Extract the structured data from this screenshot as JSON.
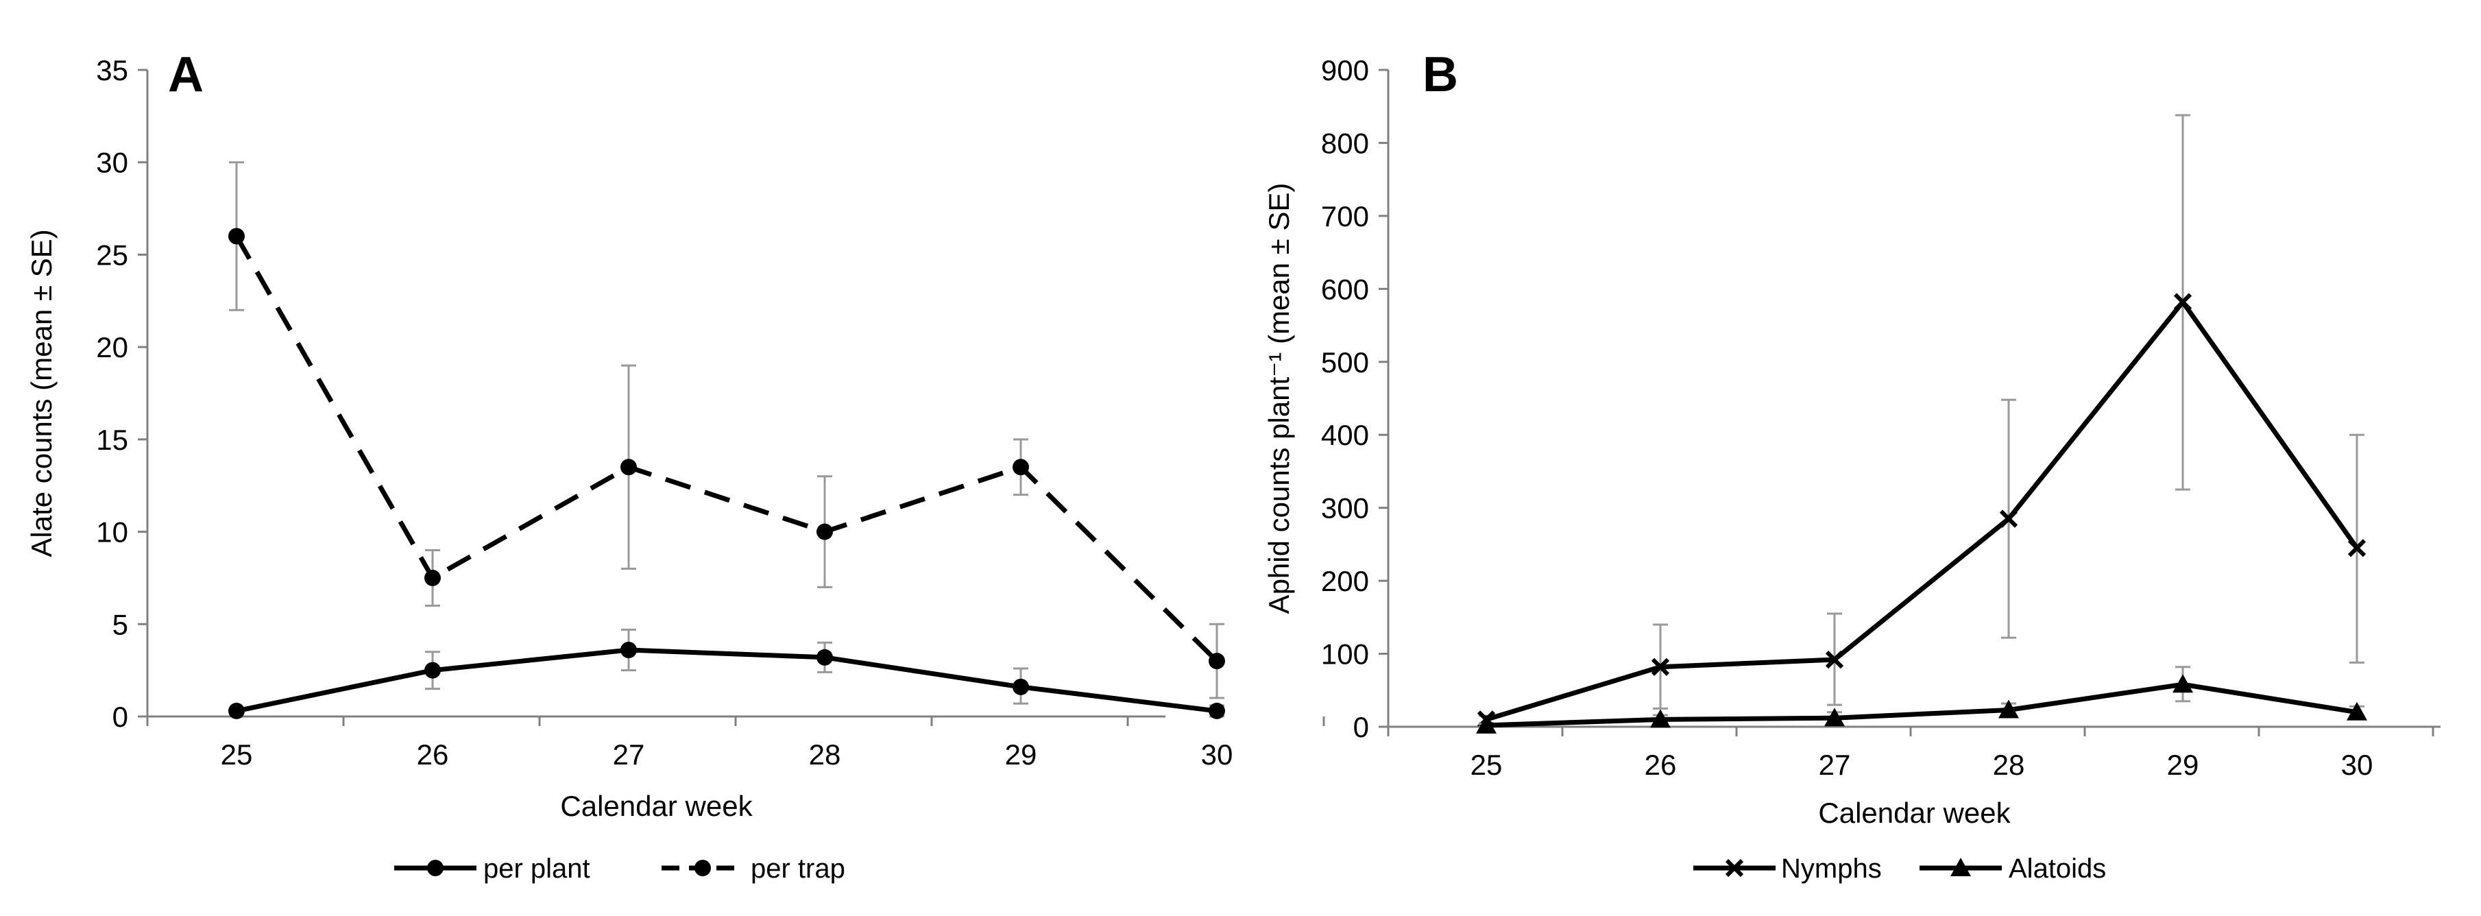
{
  "chart_data": [
    {
      "panel": "A",
      "type": "line",
      "xlabel": "Calendar week",
      "ylabel": "Alate counts (mean ± SE)",
      "x": [
        25,
        26,
        27,
        28,
        29,
        30
      ],
      "x_tick_labels": [
        "25",
        "26",
        "27",
        "28",
        "29",
        "30"
      ],
      "ylim": [
        0,
        35
      ],
      "y_ticks": [
        0,
        5,
        10,
        15,
        20,
        25,
        30,
        35
      ],
      "y_tick_labels": [
        "0",
        "5",
        "10",
        "15",
        "20",
        "25",
        "30",
        "35"
      ],
      "grid": false,
      "legend_position": "bottom",
      "series": [
        {
          "name": "per plant",
          "line_style": "solid",
          "marker": "circle",
          "color": "#000000",
          "values": [
            0.3,
            2.5,
            3.6,
            3.2,
            1.6,
            0.3
          ],
          "error_low": [
            0.3,
            1.5,
            2.5,
            2.4,
            0.7,
            0.0
          ],
          "error_high": [
            0.3,
            3.5,
            4.7,
            4.0,
            2.6,
            0.6
          ]
        },
        {
          "name": "per trap",
          "line_style": "dashed",
          "marker": "circle",
          "color": "#000000",
          "values": [
            26.0,
            7.5,
            13.5,
            10.0,
            13.5,
            3.0
          ],
          "error_low": [
            22.0,
            6.0,
            8.0,
            7.0,
            12.0,
            1.0
          ],
          "error_high": [
            30.0,
            9.0,
            19.0,
            13.0,
            15.0,
            5.0
          ]
        }
      ]
    },
    {
      "panel": "B",
      "type": "line",
      "xlabel": "Calendar week",
      "ylabel": "Aphid counts plant⁻¹ (mean ± SE)",
      "x": [
        25,
        26,
        27,
        28,
        29,
        30
      ],
      "x_tick_labels": [
        "25",
        "26",
        "27",
        "28",
        "29",
        "30"
      ],
      "ylim": [
        0,
        900
      ],
      "y_ticks": [
        0,
        100,
        200,
        300,
        400,
        500,
        600,
        700,
        800,
        900
      ],
      "y_tick_labels": [
        "0",
        "100",
        "200",
        "300",
        "400",
        "500",
        "600",
        "700",
        "800",
        "900"
      ],
      "grid": false,
      "legend_position": "bottom",
      "series": [
        {
          "name": "Nymphs",
          "line_style": "solid",
          "marker": "x",
          "color": "#000000",
          "values": [
            10,
            82,
            92,
            285,
            582,
            245
          ],
          "error_low": [
            5,
            25,
            30,
            122,
            325,
            88
          ],
          "error_high": [
            15,
            140,
            155,
            448,
            838,
            400
          ]
        },
        {
          "name": "Alatoids",
          "line_style": "solid",
          "marker": "triangle",
          "color": "#000000",
          "values": [
            2,
            10,
            12,
            23,
            58,
            20
          ],
          "error_low": [
            0,
            5,
            6,
            15,
            35,
            13
          ],
          "error_high": [
            4,
            16,
            20,
            32,
            82,
            28
          ]
        }
      ]
    }
  ],
  "styles": {
    "line_color": "#000000",
    "axis_color": "#808080",
    "error_bar_color": "#999999"
  }
}
